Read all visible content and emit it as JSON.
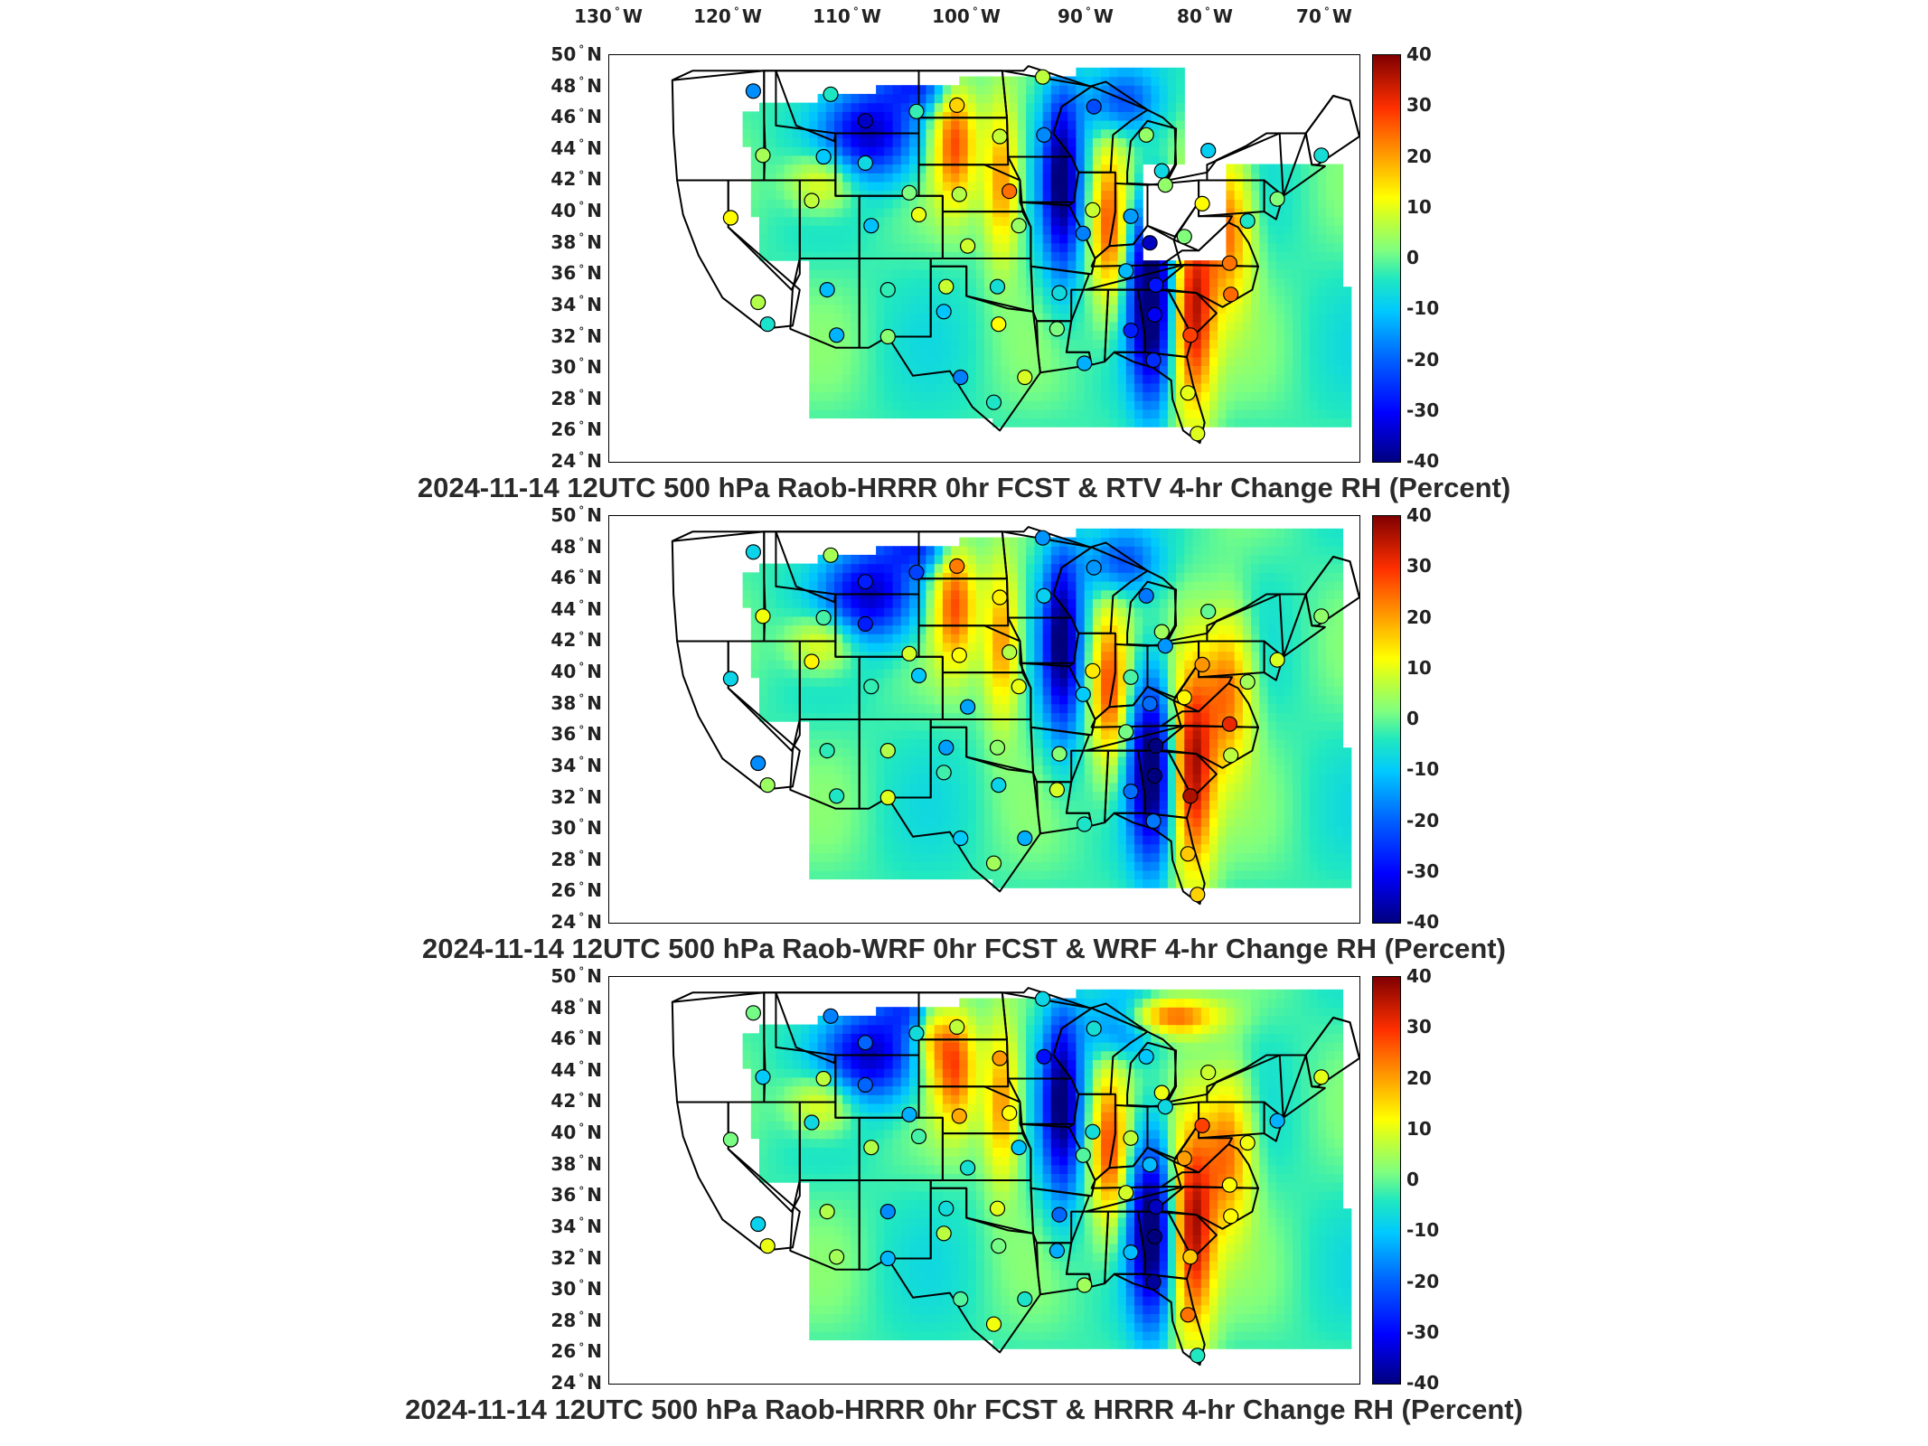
{
  "lon_labels": [
    {
      "deg": "130",
      "dir": "W"
    },
    {
      "deg": "120",
      "dir": "W"
    },
    {
      "deg": "110",
      "dir": "W"
    },
    {
      "deg": "100",
      "dir": "W"
    },
    {
      "deg": "90",
      "dir": "W"
    },
    {
      "deg": "80",
      "dir": "W"
    },
    {
      "deg": "70",
      "dir": "W"
    }
  ],
  "lat_labels": [
    {
      "deg": "50",
      "dir": "N"
    },
    {
      "deg": "48",
      "dir": "N"
    },
    {
      "deg": "46",
      "dir": "N"
    },
    {
      "deg": "44",
      "dir": "N"
    },
    {
      "deg": "42",
      "dir": "N"
    },
    {
      "deg": "40",
      "dir": "N"
    },
    {
      "deg": "38",
      "dir": "N"
    },
    {
      "deg": "36",
      "dir": "N"
    },
    {
      "deg": "34",
      "dir": "N"
    },
    {
      "deg": "32",
      "dir": "N"
    },
    {
      "deg": "30",
      "dir": "N"
    },
    {
      "deg": "28",
      "dir": "N"
    },
    {
      "deg": "26",
      "dir": "N"
    },
    {
      "deg": "24",
      "dir": "N"
    }
  ],
  "colorbar": {
    "ticks": [
      "40",
      "30",
      "20",
      "10",
      "0",
      "-10",
      "-20",
      "-30",
      "-40"
    ],
    "min": -40,
    "max": 40
  },
  "panels": [
    {
      "title": "2024-11-14 12UTC 500 hPa Raob-HRRR 0hr FCST & RTV 4-hr Change RH (Percent)",
      "pattern": "rtv"
    },
    {
      "title": "2024-11-14 12UTC 500 hPa Raob-WRF 0hr FCST & WRF 4-hr Change RH (Percent)",
      "pattern": "wrf"
    },
    {
      "title": "2024-11-14 12UTC 500 hPa Raob-HRRR 0hr FCST & HRRR 4-hr Change RH (Percent)",
      "pattern": "hrrr"
    }
  ],
  "raob_sites": [
    {
      "lon": -117.9,
      "lat": 47.7
    },
    {
      "lon": -111.4,
      "lat": 47.5
    },
    {
      "lon": -108.5,
      "lat": 45.8
    },
    {
      "lon": -104.2,
      "lat": 46.4
    },
    {
      "lon": -100.8,
      "lat": 46.8
    },
    {
      "lon": -97.2,
      "lat": 44.8
    },
    {
      "lon": -93.6,
      "lat": 48.6
    },
    {
      "lon": -93.5,
      "lat": 44.9
    },
    {
      "lon": -89.3,
      "lat": 46.7
    },
    {
      "lon": -84.9,
      "lat": 44.9
    },
    {
      "lon": -83.6,
      "lat": 42.6
    },
    {
      "lon": -79.7,
      "lat": 43.9
    },
    {
      "lon": -117.1,
      "lat": 43.6
    },
    {
      "lon": -112.0,
      "lat": 43.5
    },
    {
      "lon": -108.5,
      "lat": 43.1
    },
    {
      "lon": -104.8,
      "lat": 41.2
    },
    {
      "lon": -100.6,
      "lat": 41.1
    },
    {
      "lon": -96.4,
      "lat": 41.3
    },
    {
      "lon": -89.4,
      "lat": 40.1
    },
    {
      "lon": -86.2,
      "lat": 39.7
    },
    {
      "lon": -83.3,
      "lat": 41.7
    },
    {
      "lon": -80.2,
      "lat": 40.5
    },
    {
      "lon": -76.4,
      "lat": 39.4
    },
    {
      "lon": -73.9,
      "lat": 40.8
    },
    {
      "lon": -70.2,
      "lat": 43.6
    },
    {
      "lon": -119.8,
      "lat": 39.6
    },
    {
      "lon": -113.0,
      "lat": 40.7
    },
    {
      "lon": -108.0,
      "lat": 39.1
    },
    {
      "lon": -104.0,
      "lat": 39.8
    },
    {
      "lon": -95.6,
      "lat": 39.1
    },
    {
      "lon": -90.2,
      "lat": 38.6
    },
    {
      "lon": -99.9,
      "lat": 37.8
    },
    {
      "lon": -84.6,
      "lat": 38.0
    },
    {
      "lon": -81.7,
      "lat": 38.4
    },
    {
      "lon": -77.9,
      "lat": 36.7
    },
    {
      "lon": -86.6,
      "lat": 36.2
    },
    {
      "lon": -84.1,
      "lat": 35.3
    },
    {
      "lon": -92.2,
      "lat": 34.8
    },
    {
      "lon": -97.4,
      "lat": 35.2
    },
    {
      "lon": -101.7,
      "lat": 35.2
    },
    {
      "lon": -106.6,
      "lat": 35.0
    },
    {
      "lon": -111.7,
      "lat": 35.0
    },
    {
      "lon": -117.5,
      "lat": 34.2
    },
    {
      "lon": -116.7,
      "lat": 32.8
    },
    {
      "lon": -110.9,
      "lat": 32.1
    },
    {
      "lon": -106.6,
      "lat": 32.0
    },
    {
      "lon": -101.9,
      "lat": 33.6
    },
    {
      "lon": -97.3,
      "lat": 32.8
    },
    {
      "lon": -92.4,
      "lat": 32.5
    },
    {
      "lon": -86.2,
      "lat": 32.4
    },
    {
      "lon": -84.2,
      "lat": 33.4
    },
    {
      "lon": -81.2,
      "lat": 32.1
    },
    {
      "lon": -90.1,
      "lat": 30.3
    },
    {
      "lon": -95.1,
      "lat": 29.4
    },
    {
      "lon": -97.7,
      "lat": 27.8
    },
    {
      "lon": -100.5,
      "lat": 29.4
    },
    {
      "lon": -84.3,
      "lat": 30.5
    },
    {
      "lon": -81.4,
      "lat": 28.4
    },
    {
      "lon": -77.8,
      "lat": 34.7
    },
    {
      "lon": -80.6,
      "lat": 25.8
    }
  ]
}
